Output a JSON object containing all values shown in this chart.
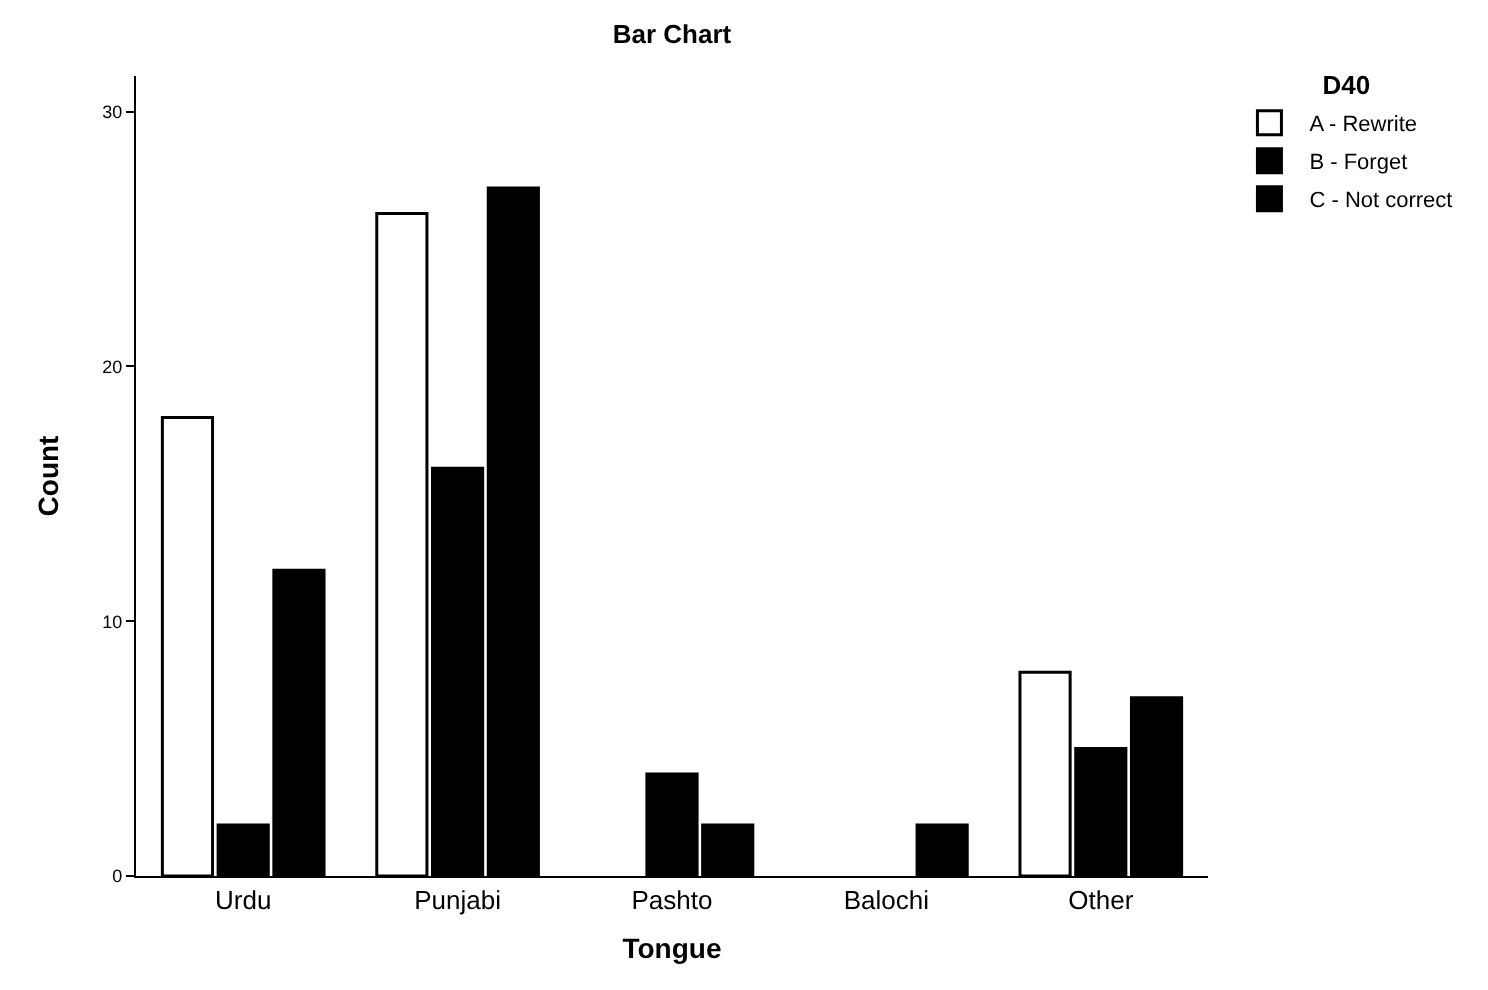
{
  "chart_data": {
    "type": "bar",
    "title": "Bar Chart",
    "xlabel": "Tongue",
    "ylabel": "Count",
    "legend_title": "D40",
    "categories": [
      "Urdu",
      "Punjabi",
      "Pashto",
      "Balochi",
      "Other"
    ],
    "series": [
      {
        "name": "A - Rewrite",
        "color": "#ffffff",
        "values": [
          18,
          26,
          null,
          null,
          8
        ]
      },
      {
        "name": "B - Forget",
        "color": "#000000",
        "values": [
          2,
          16,
          4,
          null,
          5
        ]
      },
      {
        "name": "C - Not correct",
        "color": "#000000",
        "values": [
          12,
          27,
          2,
          2,
          7
        ]
      }
    ],
    "ylim": [
      0,
      31.4
    ],
    "yticks": [
      0,
      10,
      20,
      30
    ],
    "grid": false,
    "legend": "top right"
  }
}
